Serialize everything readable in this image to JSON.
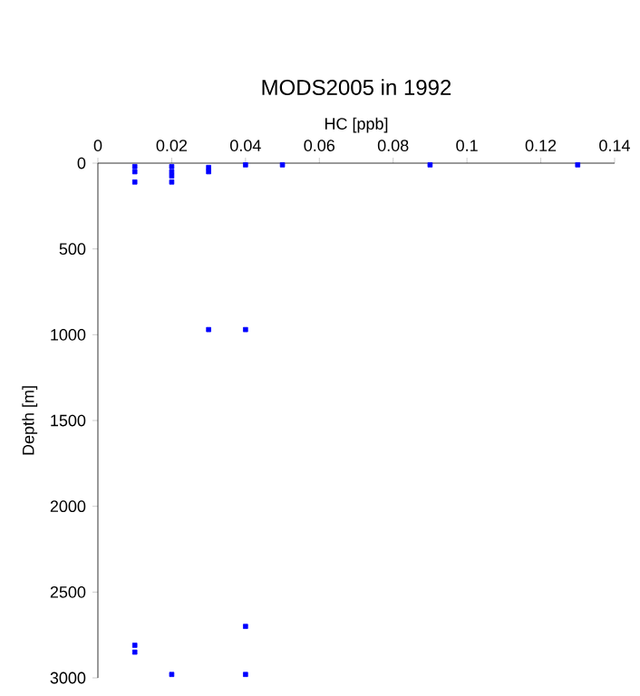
{
  "chart_data": {
    "type": "scatter",
    "title": "MODS2005 in 1992",
    "xlabel": "HC [ppb]",
    "ylabel": "Depth [m]",
    "series": [
      {
        "color": "#0000ff",
        "marker": "square",
        "x": [
          0.01,
          0.01,
          0.01,
          0.02,
          0.02,
          0.02,
          0.02,
          0.03,
          0.03,
          0.04,
          0.05,
          0.09,
          0.13,
          0.03,
          0.04,
          0.04,
          0.01,
          0.01,
          0.02,
          0.04
        ],
        "values": [
          20,
          50,
          110,
          20,
          50,
          75,
          110,
          25,
          50,
          10,
          10,
          10,
          10,
          970,
          970,
          2700,
          2810,
          2850,
          2980,
          2980
        ]
      }
    ],
    "xlim": [
      0,
      0.14
    ],
    "ylim": [
      3000,
      0
    ],
    "xticks": [
      0,
      0.02,
      0.04,
      0.06,
      0.08,
      {
        "value": 0.1,
        "label": "0.1"
      },
      0.12,
      0.14
    ],
    "yticks": [
      0,
      500,
      1000,
      1500,
      2000,
      2500,
      3000
    ],
    "grid": false
  }
}
